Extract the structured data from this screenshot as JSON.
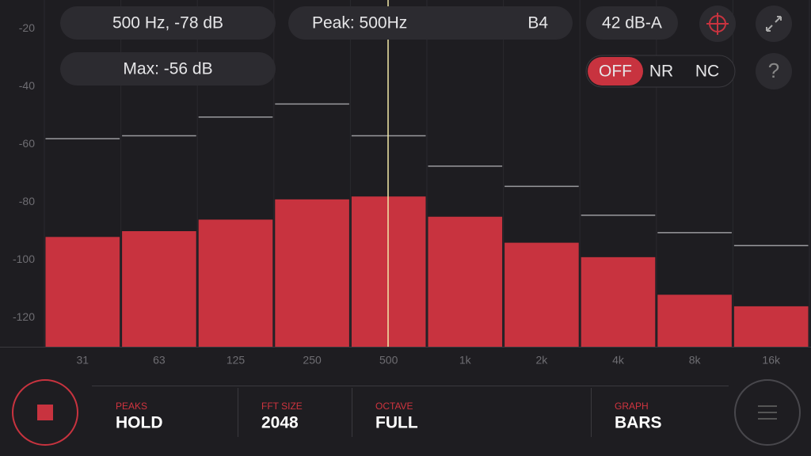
{
  "header": {
    "cursor_readout": "500 Hz, -78 dB",
    "peak": "Peak: 500Hz",
    "note": "B4",
    "level": "42 dB-A",
    "max": "Max: -56 dB",
    "modes": [
      "OFF",
      "NR",
      "NC"
    ],
    "help": "?"
  },
  "chart_data": {
    "type": "bar",
    "categories": [
      "31",
      "63",
      "125",
      "250",
      "500",
      "1k",
      "2k",
      "4k",
      "8k",
      "16k"
    ],
    "series": [
      {
        "color": "#c8333f",
        "values": [
          -92,
          -90,
          -86,
          -79,
          -78,
          -85,
          -94,
          -99,
          -112,
          -116
        ]
      },
      {
        "color": "#9a9a9e",
        "values": [
          -58,
          -57,
          -50.5,
          -46,
          -57,
          -67.5,
          -74.5,
          -84.5,
          -90.5,
          -95
        ]
      }
    ],
    "ylim": [
      -130,
      -10
    ],
    "yticks": [
      -20,
      -40,
      -60,
      -80,
      -100,
      -120
    ],
    "grid": false
  },
  "toolbar": {
    "items": [
      {
        "label": "PEAKS",
        "value": "HOLD"
      },
      {
        "label": "FFT SIZE",
        "value": "2048"
      },
      {
        "label": "OCTAVE",
        "value": "FULL"
      },
      {
        "label": "GRAPH",
        "value": "BARS"
      }
    ]
  }
}
